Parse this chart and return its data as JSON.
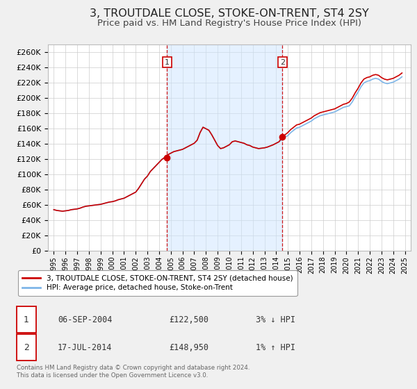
{
  "title": "3, TROUTDALE CLOSE, STOKE-ON-TRENT, ST4 2SY",
  "subtitle": "Price paid vs. HM Land Registry's House Price Index (HPI)",
  "title_fontsize": 11.5,
  "subtitle_fontsize": 9.5,
  "background_color": "#f0f0f0",
  "plot_bg_color": "#ffffff",
  "grid_color": "#cccccc",
  "hpi_color": "#7eb6e8",
  "price_color": "#cc0000",
  "ylim": [
    0,
    270000
  ],
  "ytick_step": 20000,
  "xmin": 1994.5,
  "xmax": 2025.5,
  "marker1_x": 2004.67,
  "marker1_y": 122500,
  "marker2_x": 2014.54,
  "marker2_y": 148950,
  "vline1_x": 2004.67,
  "vline2_x": 2014.54,
  "legend_label_price": "3, TROUTDALE CLOSE, STOKE-ON-TRENT, ST4 2SY (detached house)",
  "legend_label_hpi": "HPI: Average price, detached house, Stoke-on-Trent",
  "annot1_num": "1",
  "annot1_date": "06-SEP-2004",
  "annot1_price": "£122,500",
  "annot1_hpi": "3% ↓ HPI",
  "annot2_num": "2",
  "annot2_date": "17-JUL-2014",
  "annot2_price": "£148,950",
  "annot2_hpi": "1% ↑ HPI",
  "footer": "Contains HM Land Registry data © Crown copyright and database right 2024.\nThis data is licensed under the Open Government Licence v3.0.",
  "hpi_data": [
    [
      1995.0,
      54000
    ],
    [
      1995.25,
      53000
    ],
    [
      1995.5,
      52500
    ],
    [
      1995.75,
      52000
    ],
    [
      1996.0,
      52500
    ],
    [
      1996.25,
      53000
    ],
    [
      1996.5,
      54000
    ],
    [
      1996.75,
      54500
    ],
    [
      1997.0,
      55000
    ],
    [
      1997.25,
      56000
    ],
    [
      1997.5,
      57500
    ],
    [
      1997.75,
      58500
    ],
    [
      1998.0,
      59000
    ],
    [
      1998.25,
      59500
    ],
    [
      1998.5,
      60000
    ],
    [
      1998.75,
      60500
    ],
    [
      1999.0,
      61000
    ],
    [
      1999.25,
      62000
    ],
    [
      1999.5,
      63000
    ],
    [
      1999.75,
      64000
    ],
    [
      2000.0,
      64500
    ],
    [
      2000.25,
      65500
    ],
    [
      2000.5,
      67000
    ],
    [
      2000.75,
      68000
    ],
    [
      2001.0,
      69000
    ],
    [
      2001.25,
      71000
    ],
    [
      2001.5,
      73000
    ],
    [
      2001.75,
      75000
    ],
    [
      2002.0,
      77000
    ],
    [
      2002.25,
      82000
    ],
    [
      2002.5,
      88000
    ],
    [
      2002.75,
      94000
    ],
    [
      2003.0,
      98000
    ],
    [
      2003.25,
      104000
    ],
    [
      2003.5,
      108000
    ],
    [
      2003.75,
      112000
    ],
    [
      2004.0,
      116000
    ],
    [
      2004.25,
      120000
    ],
    [
      2004.5,
      123000
    ],
    [
      2004.75,
      126000
    ],
    [
      2005.0,
      128000
    ],
    [
      2005.25,
      130000
    ],
    [
      2005.5,
      131000
    ],
    [
      2005.75,
      132000
    ],
    [
      2006.0,
      133000
    ],
    [
      2006.25,
      135000
    ],
    [
      2006.5,
      137000
    ],
    [
      2006.75,
      139000
    ],
    [
      2007.0,
      141000
    ],
    [
      2007.25,
      145000
    ],
    [
      2007.5,
      155000
    ],
    [
      2007.75,
      162000
    ],
    [
      2008.0,
      160000
    ],
    [
      2008.25,
      158000
    ],
    [
      2008.5,
      152000
    ],
    [
      2008.75,
      145000
    ],
    [
      2009.0,
      138000
    ],
    [
      2009.25,
      134000
    ],
    [
      2009.5,
      135000
    ],
    [
      2009.75,
      137000
    ],
    [
      2010.0,
      139000
    ],
    [
      2010.25,
      143000
    ],
    [
      2010.5,
      144000
    ],
    [
      2010.75,
      143000
    ],
    [
      2011.0,
      142000
    ],
    [
      2011.25,
      141000
    ],
    [
      2011.5,
      139000
    ],
    [
      2011.75,
      138000
    ],
    [
      2012.0,
      136000
    ],
    [
      2012.25,
      135000
    ],
    [
      2012.5,
      134000
    ],
    [
      2012.75,
      134500
    ],
    [
      2013.0,
      135000
    ],
    [
      2013.25,
      136000
    ],
    [
      2013.5,
      137500
    ],
    [
      2013.75,
      139000
    ],
    [
      2014.0,
      141000
    ],
    [
      2014.25,
      143000
    ],
    [
      2014.5,
      146000
    ],
    [
      2014.75,
      149000
    ],
    [
      2015.0,
      151000
    ],
    [
      2015.25,
      155000
    ],
    [
      2015.5,
      158000
    ],
    [
      2015.75,
      161000
    ],
    [
      2016.0,
      162000
    ],
    [
      2016.25,
      164000
    ],
    [
      2016.5,
      166000
    ],
    [
      2016.75,
      168000
    ],
    [
      2017.0,
      170000
    ],
    [
      2017.25,
      173000
    ],
    [
      2017.5,
      175000
    ],
    [
      2017.75,
      177000
    ],
    [
      2018.0,
      178000
    ],
    [
      2018.25,
      179000
    ],
    [
      2018.5,
      180000
    ],
    [
      2018.75,
      181000
    ],
    [
      2019.0,
      182000
    ],
    [
      2019.25,
      184000
    ],
    [
      2019.5,
      186000
    ],
    [
      2019.75,
      188000
    ],
    [
      2020.0,
      189000
    ],
    [
      2020.25,
      190000
    ],
    [
      2020.5,
      195000
    ],
    [
      2020.75,
      202000
    ],
    [
      2021.0,
      208000
    ],
    [
      2021.25,
      215000
    ],
    [
      2021.5,
      220000
    ],
    [
      2021.75,
      222000
    ],
    [
      2022.0,
      223000
    ],
    [
      2022.25,
      225000
    ],
    [
      2022.5,
      226000
    ],
    [
      2022.75,
      225000
    ],
    [
      2023.0,
      222000
    ],
    [
      2023.25,
      220000
    ],
    [
      2023.5,
      219000
    ],
    [
      2023.75,
      220000
    ],
    [
      2024.0,
      221000
    ],
    [
      2024.25,
      223000
    ],
    [
      2024.5,
      225000
    ],
    [
      2024.75,
      228000
    ]
  ],
  "price_data": [
    [
      1995.0,
      54000
    ],
    [
      1995.25,
      53000
    ],
    [
      1995.5,
      52500
    ],
    [
      1995.75,
      52000
    ],
    [
      1996.0,
      52500
    ],
    [
      1996.25,
      53000
    ],
    [
      1996.5,
      54000
    ],
    [
      1996.75,
      54500
    ],
    [
      1997.0,
      55000
    ],
    [
      1997.25,
      56000
    ],
    [
      1997.5,
      57500
    ],
    [
      1997.75,
      58500
    ],
    [
      1998.0,
      59000
    ],
    [
      1998.25,
      59500
    ],
    [
      1998.5,
      60000
    ],
    [
      1998.75,
      60500
    ],
    [
      1999.0,
      61000
    ],
    [
      1999.25,
      62000
    ],
    [
      1999.5,
      63000
    ],
    [
      1999.75,
      64000
    ],
    [
      2000.0,
      64500
    ],
    [
      2000.25,
      65500
    ],
    [
      2000.5,
      67000
    ],
    [
      2000.75,
      68000
    ],
    [
      2001.0,
      69000
    ],
    [
      2001.25,
      71000
    ],
    [
      2001.5,
      73000
    ],
    [
      2001.75,
      75000
    ],
    [
      2002.0,
      77000
    ],
    [
      2002.25,
      82000
    ],
    [
      2002.5,
      88000
    ],
    [
      2002.75,
      94000
    ],
    [
      2003.0,
      98000
    ],
    [
      2003.25,
      104000
    ],
    [
      2003.5,
      108000
    ],
    [
      2003.75,
      112000
    ],
    [
      2004.0,
      116000
    ],
    [
      2004.25,
      120000
    ],
    [
      2004.5,
      122500
    ],
    [
      2004.75,
      126000
    ],
    [
      2005.0,
      128000
    ],
    [
      2005.25,
      130000
    ],
    [
      2005.5,
      131000
    ],
    [
      2005.75,
      132000
    ],
    [
      2006.0,
      133000
    ],
    [
      2006.25,
      135000
    ],
    [
      2006.5,
      137000
    ],
    [
      2006.75,
      139000
    ],
    [
      2007.0,
      141000
    ],
    [
      2007.25,
      145000
    ],
    [
      2007.5,
      155000
    ],
    [
      2007.75,
      162000
    ],
    [
      2008.0,
      160000
    ],
    [
      2008.25,
      158000
    ],
    [
      2008.5,
      152000
    ],
    [
      2008.75,
      145000
    ],
    [
      2009.0,
      138000
    ],
    [
      2009.25,
      134000
    ],
    [
      2009.5,
      135000
    ],
    [
      2009.75,
      137000
    ],
    [
      2010.0,
      139000
    ],
    [
      2010.25,
      143000
    ],
    [
      2010.5,
      144000
    ],
    [
      2010.75,
      143000
    ],
    [
      2011.0,
      142000
    ],
    [
      2011.25,
      141000
    ],
    [
      2011.5,
      139000
    ],
    [
      2011.75,
      138000
    ],
    [
      2012.0,
      136000
    ],
    [
      2012.25,
      135000
    ],
    [
      2012.5,
      134000
    ],
    [
      2012.75,
      134500
    ],
    [
      2013.0,
      135000
    ],
    [
      2013.25,
      136000
    ],
    [
      2013.5,
      137500
    ],
    [
      2013.75,
      139000
    ],
    [
      2014.0,
      141000
    ],
    [
      2014.25,
      143000
    ],
    [
      2014.5,
      148950
    ],
    [
      2014.75,
      152000
    ],
    [
      2015.0,
      155000
    ],
    [
      2015.25,
      159000
    ],
    [
      2015.5,
      162000
    ],
    [
      2015.75,
      165000
    ],
    [
      2016.0,
      166000
    ],
    [
      2016.25,
      168000
    ],
    [
      2016.5,
      170000
    ],
    [
      2016.75,
      172000
    ],
    [
      2017.0,
      174000
    ],
    [
      2017.25,
      177000
    ],
    [
      2017.5,
      179000
    ],
    [
      2017.75,
      181000
    ],
    [
      2018.0,
      182000
    ],
    [
      2018.25,
      183000
    ],
    [
      2018.5,
      184000
    ],
    [
      2018.75,
      185000
    ],
    [
      2019.0,
      186000
    ],
    [
      2019.25,
      188000
    ],
    [
      2019.5,
      190000
    ],
    [
      2019.75,
      192000
    ],
    [
      2020.0,
      193000
    ],
    [
      2020.25,
      195000
    ],
    [
      2020.5,
      200000
    ],
    [
      2020.75,
      207000
    ],
    [
      2021.0,
      213000
    ],
    [
      2021.25,
      220000
    ],
    [
      2021.5,
      225000
    ],
    [
      2021.75,
      227000
    ],
    [
      2022.0,
      228000
    ],
    [
      2022.25,
      230000
    ],
    [
      2022.5,
      231000
    ],
    [
      2022.75,
      230000
    ],
    [
      2023.0,
      227000
    ],
    [
      2023.25,
      225000
    ],
    [
      2023.5,
      224000
    ],
    [
      2023.75,
      225000
    ],
    [
      2024.0,
      226000
    ],
    [
      2024.25,
      228000
    ],
    [
      2024.5,
      230000
    ],
    [
      2024.75,
      233000
    ]
  ]
}
